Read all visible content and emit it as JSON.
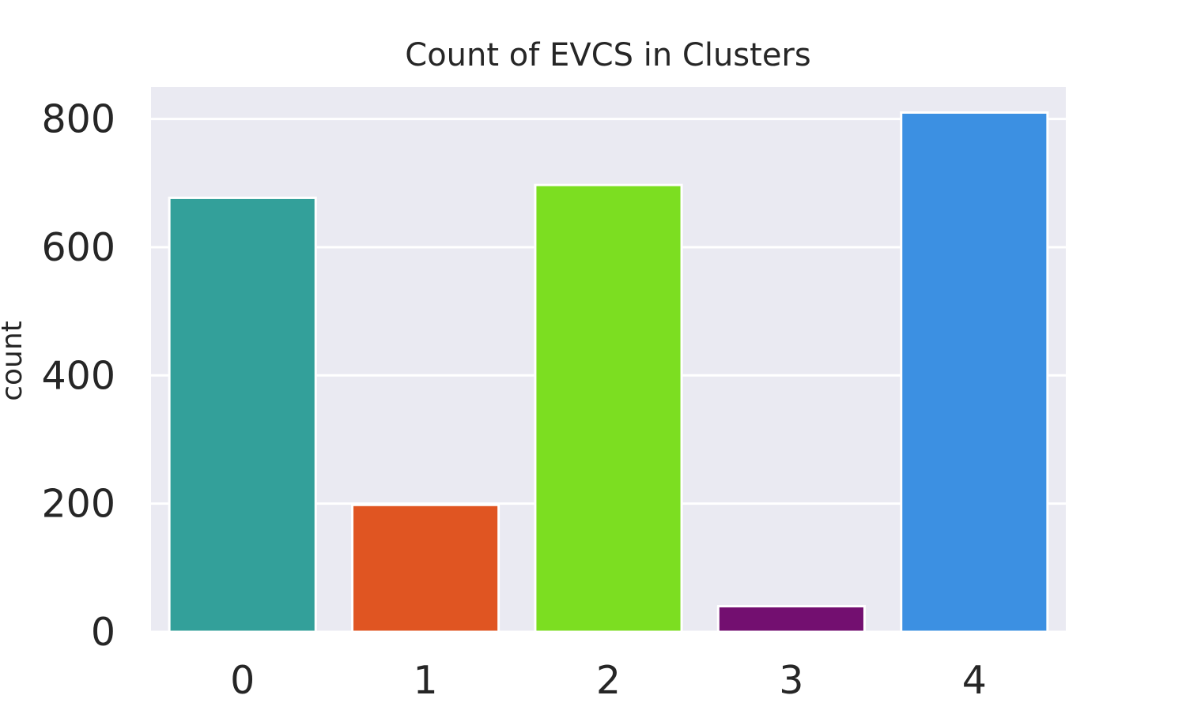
{
  "chart_data": {
    "type": "bar",
    "title": "Count of EVCS in Clusters",
    "xlabel": "",
    "ylabel": "count",
    "categories": [
      "0",
      "1",
      "2",
      "3",
      "4"
    ],
    "values": [
      677,
      198,
      697,
      40,
      810
    ],
    "colors": [
      "#33A09A",
      "#E05522",
      "#7CDE21",
      "#730F70",
      "#3C90E2"
    ],
    "ylim": [
      0,
      850
    ],
    "yticks": [
      0,
      200,
      400,
      600,
      800
    ],
    "ytick_labels": [
      "0",
      "200",
      "400",
      "600",
      "800"
    ],
    "grid": true,
    "background": "#EAEAF2",
    "legend": "none"
  }
}
